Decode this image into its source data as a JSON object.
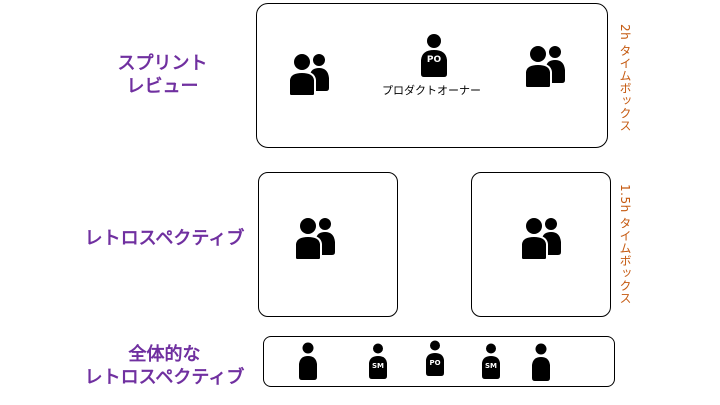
{
  "sections": {
    "sprint_review": {
      "label_line1": "スプリント",
      "label_line2": "レビュー",
      "timebox": "2h タイムボックス",
      "po_caption": "プロダクトオーナー"
    },
    "retrospective": {
      "label": "レトロスペクティブ",
      "timebox": "1.5h タイムボックス"
    },
    "overall_retro": {
      "label_line1": "全体的な",
      "label_line2": "レトロスペクティブ"
    }
  },
  "badges": {
    "po": "PO",
    "sm": "SM"
  },
  "colors": {
    "label": "#7030a0",
    "timebox": "#c55a11",
    "icon": "#000000"
  },
  "icons": [
    "team-icon",
    "person-icon",
    "badge-person-icon"
  ]
}
